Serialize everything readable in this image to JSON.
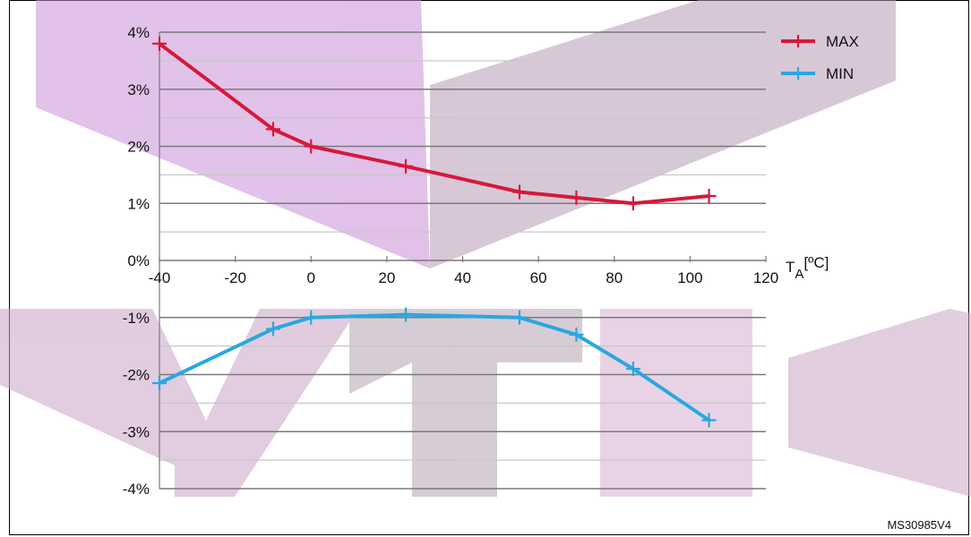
{
  "chart_data": {
    "type": "line",
    "x_axis": {
      "label_main": "T",
      "label_sub": "A",
      "label_unit": "[ºC]",
      "range": [
        -40,
        120
      ],
      "ticks": [
        -40,
        -20,
        0,
        20,
        40,
        60,
        80,
        100,
        120
      ],
      "tick_labels": [
        "-40",
        "-20",
        "0",
        "20",
        "40",
        "60",
        "80",
        "100",
        "120"
      ]
    },
    "y_axis": {
      "range": [
        -4,
        4
      ],
      "ticks": [
        4,
        3,
        2,
        1,
        0,
        -1,
        -2,
        -3,
        -4
      ],
      "tick_labels": [
        "4%",
        "3%",
        "2%",
        "1%",
        "0%",
        "-1%",
        "-2%",
        "-3%",
        "-4%"
      ],
      "minor_gridlines": [
        3.5,
        2.5,
        1.5,
        0.5,
        -1.5,
        -2.5,
        -3.5
      ]
    },
    "grid": true,
    "legend_position": "top-right",
    "series": [
      {
        "name": "MAX",
        "color": "#d7183a",
        "points": [
          [
            -40,
            3.8
          ],
          [
            -10,
            2.3
          ],
          [
            0,
            2.0
          ],
          [
            25,
            1.65
          ],
          [
            55,
            1.2
          ],
          [
            70,
            1.1
          ],
          [
            85,
            1.0
          ],
          [
            105,
            1.13
          ]
        ]
      },
      {
        "name": "MIN",
        "color": "#28a8e0",
        "points": [
          [
            -40,
            -2.15
          ],
          [
            -10,
            -1.2
          ],
          [
            0,
            -1.0
          ],
          [
            25,
            -0.95
          ],
          [
            55,
            -1.0
          ],
          [
            70,
            -1.3
          ],
          [
            85,
            -1.9
          ],
          [
            105,
            -2.8
          ]
        ]
      }
    ]
  },
  "reference": "MS30985V4"
}
